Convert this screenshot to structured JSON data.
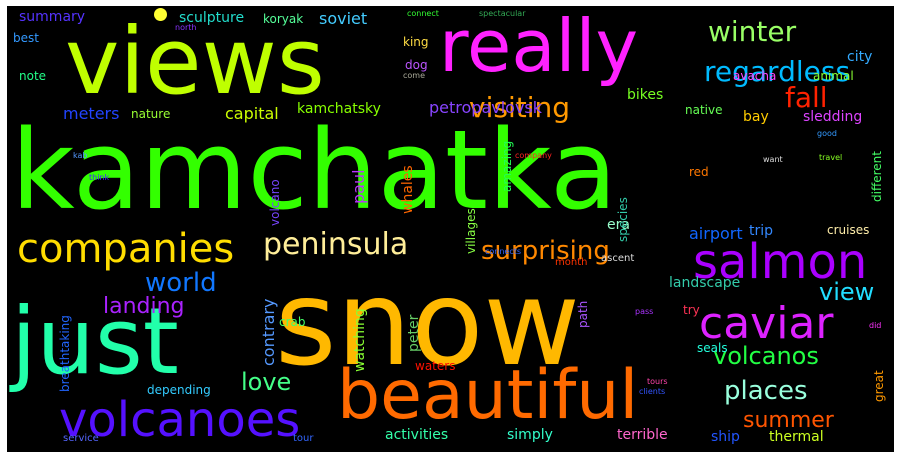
{
  "words": [
    {
      "text": "kamchatka",
      "color": "#33ff00"
    },
    {
      "text": "snow",
      "color": "#ffb800"
    },
    {
      "text": "views",
      "color": "#bfff00"
    },
    {
      "text": "really",
      "color": "#ff22ff"
    },
    {
      "text": "just",
      "color": "#22ffaa"
    },
    {
      "text": "beautiful",
      "color": "#ff6a00"
    },
    {
      "text": "volcanoes",
      "color": "#5511ff"
    },
    {
      "text": "companies",
      "color": "#ffdd00"
    },
    {
      "text": "peninsula",
      "color": "#ffee99"
    },
    {
      "text": "salmon",
      "color": "#aa00ff"
    },
    {
      "text": "caviar",
      "color": "#dd22ff"
    },
    {
      "text": "surprising",
      "color": "#ff8800"
    },
    {
      "text": "winter",
      "color": "#99ff66"
    },
    {
      "text": "regardless",
      "color": "#00bbff"
    },
    {
      "text": "fall",
      "color": "#ff2200"
    },
    {
      "text": "visiting",
      "color": "#ff9900"
    },
    {
      "text": "world",
      "color": "#1177ff"
    },
    {
      "text": "landing",
      "color": "#aa22ff"
    },
    {
      "text": "love",
      "color": "#44ff88"
    },
    {
      "text": "places",
      "color": "#99ffdd"
    },
    {
      "text": "volcanos",
      "color": "#22ff44"
    },
    {
      "text": "view",
      "color": "#22ddff"
    },
    {
      "text": "summer",
      "color": "#ff5500"
    },
    {
      "text": "landscape",
      "color": "#33ccaa"
    },
    {
      "text": "capital",
      "color": "#ccff00"
    },
    {
      "text": "kamchatsky",
      "color": "#88ff00"
    },
    {
      "text": "petropavlovsk",
      "color": "#8844ff"
    },
    {
      "text": "airport",
      "color": "#1166ff"
    },
    {
      "text": "bikes",
      "color": "#77ff22"
    },
    {
      "text": "meters",
      "color": "#2244ff"
    },
    {
      "text": "nature",
      "color": "#99ff33"
    },
    {
      "text": "sculpture",
      "color": "#22ddcc"
    },
    {
      "text": "soviet",
      "color": "#44ccff"
    },
    {
      "text": "summary",
      "color": "#5533ff"
    },
    {
      "text": "koryak",
      "color": "#55ff99"
    },
    {
      "text": "city",
      "color": "#33aaff"
    },
    {
      "text": "animal",
      "color": "#88ff33"
    },
    {
      "text": "avacha",
      "color": "#ff44ff"
    },
    {
      "text": "king",
      "color": "#ffdd44"
    },
    {
      "text": "dog",
      "color": "#bb55ff"
    },
    {
      "text": "best",
      "color": "#3399ff"
    },
    {
      "text": "note",
      "color": "#22ff88"
    },
    {
      "text": "bay",
      "color": "#ffcc00"
    },
    {
      "text": "sledding",
      "color": "#dd44ff"
    },
    {
      "text": "native",
      "color": "#66ff55"
    },
    {
      "text": "era",
      "color": "#99ffcc"
    },
    {
      "text": "trip",
      "color": "#3388ff"
    },
    {
      "text": "cruises",
      "color": "#ffeeaa"
    },
    {
      "text": "seals",
      "color": "#22ffdd"
    },
    {
      "text": "ascent",
      "color": "#dddddd"
    },
    {
      "text": "month",
      "color": "#ff3300"
    },
    {
      "text": "red",
      "color": "#ff7700"
    },
    {
      "text": "crab",
      "color": "#44ff66"
    },
    {
      "text": "try",
      "color": "#ff3355"
    },
    {
      "text": "waters",
      "color": "#ff1100"
    },
    {
      "text": "depending",
      "color": "#33ccff"
    },
    {
      "text": "activities",
      "color": "#33ffaa"
    },
    {
      "text": "simply",
      "color": "#33ffcc"
    },
    {
      "text": "terrible",
      "color": "#ff66cc"
    },
    {
      "text": "ship",
      "color": "#2255ff"
    },
    {
      "text": "thermal",
      "color": "#ccff22"
    },
    {
      "text": "service",
      "color": "#5566ff"
    },
    {
      "text": "tour",
      "color": "#3366ff"
    },
    {
      "text": "connect",
      "color": "#33ff33"
    },
    {
      "text": "spectacular",
      "color": "#33aa55"
    },
    {
      "text": "north",
      "color": "#8833ff"
    },
    {
      "text": "come",
      "color": "#aaaa99"
    },
    {
      "text": "good",
      "color": "#3399ff"
    },
    {
      "text": "kab",
      "color": "#5599ff"
    },
    {
      "text": "think",
      "color": "#4422ff"
    },
    {
      "text": "company",
      "color": "#ff2222"
    },
    {
      "text": "connects",
      "color": "#3366ff"
    },
    {
      "text": "pass",
      "color": "#aa33ff"
    },
    {
      "text": "tours",
      "color": "#ff44aa"
    },
    {
      "text": "clients",
      "color": "#3355ff"
    },
    {
      "text": "did",
      "color": "#ff33ff"
    },
    {
      "text": "want",
      "color": "#dddddd"
    },
    {
      "text": "travel",
      "color": "#88ff22"
    },
    {
      "text": "different",
      "color": "#44ff66"
    },
    {
      "text": "great",
      "color": "#ff9900"
    },
    {
      "text": "species",
      "color": "#33ccaa"
    },
    {
      "text": "amazing",
      "color": "#22ff55"
    },
    {
      "text": "villages",
      "color": "#88ff44"
    },
    {
      "text": "whales",
      "color": "#ff6600"
    },
    {
      "text": "paul",
      "color": "#bb33ff"
    },
    {
      "text": "peter",
      "color": "#66cc66"
    },
    {
      "text": "watching",
      "color": "#88ff33"
    },
    {
      "text": "contrary",
      "color": "#5599ff"
    },
    {
      "text": "breathtaking",
      "color": "#2266ff"
    },
    {
      "text": "volcano",
      "color": "#7744ff"
    },
    {
      "text": "path",
      "color": "#aa55ff"
    }
  ]
}
